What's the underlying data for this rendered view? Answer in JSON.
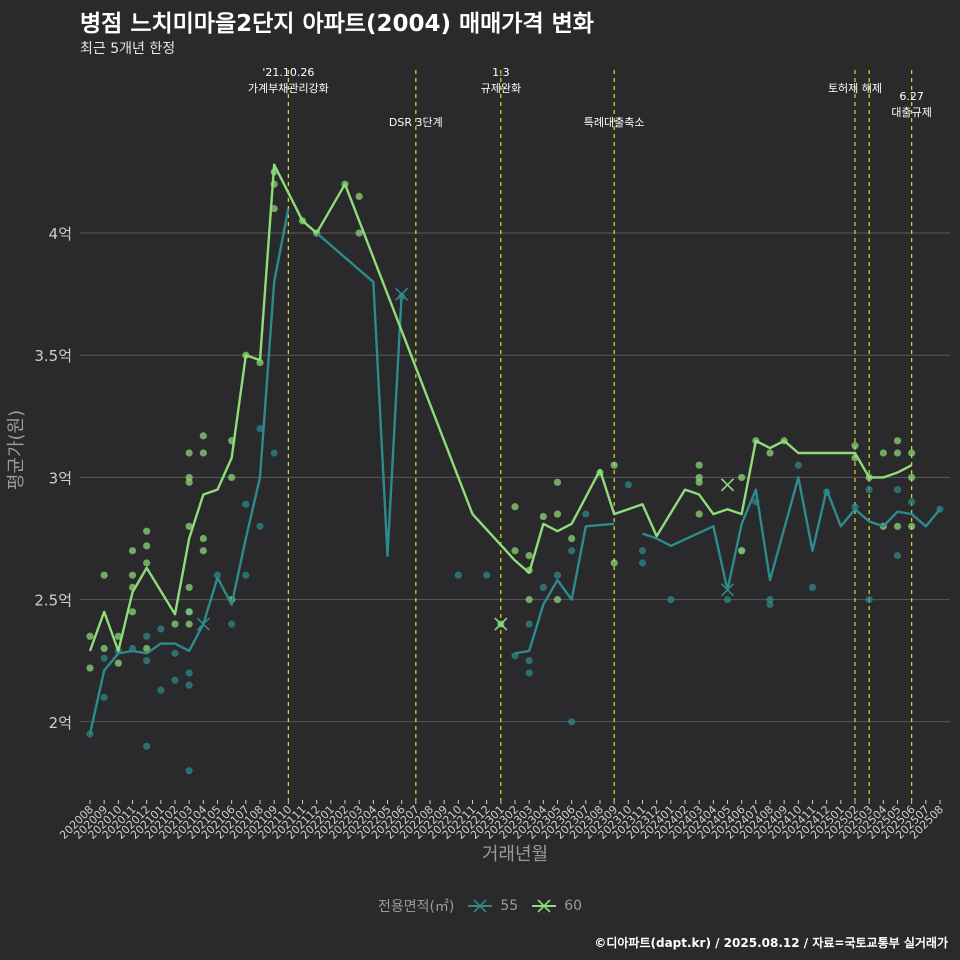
{
  "title": "병점 느치미마을2단지 아파트(2004) 매매가격 변화",
  "subtitle": "최근 5개년 한정",
  "credit": "©디아파트(dapt.kr) / 2025.08.12 / 자료=국토교통부 실거래가",
  "legend": {
    "title": "전용면적(㎡)",
    "items": [
      "55",
      "60"
    ]
  },
  "colors": {
    "s55": "#2e8b8b",
    "s60": "#8fdc7a",
    "vline": "#d9e021",
    "grid": "#5a5a5a",
    "axis": "#cfcfcf",
    "label": "#9a9a9a"
  },
  "chart_data": {
    "type": "line",
    "xlabel": "거래년월",
    "ylabel": "평균가(원)",
    "ylim": [
      1.68,
      4.7
    ],
    "yticks": [
      2,
      2.5,
      3,
      3.5,
      4
    ],
    "ytick_labels": [
      "2억",
      "2.5억",
      "3억",
      "3.5억",
      "4억"
    ],
    "x_start": "202008",
    "x_end": "202508",
    "x": [
      "202008",
      "202009",
      "202010",
      "202011",
      "202012",
      "202101",
      "202102",
      "202103",
      "202104",
      "202105",
      "202106",
      "202107",
      "202108",
      "202109",
      "202110",
      "202111",
      "202112",
      "202201",
      "202202",
      "202203",
      "202204",
      "202205",
      "202206",
      "202207",
      "202208",
      "202209",
      "202210",
      "202211",
      "202212",
      "202301",
      "202302",
      "202303",
      "202304",
      "202305",
      "202306",
      "202307",
      "202308",
      "202309",
      "202310",
      "202311",
      "202312",
      "202401",
      "202402",
      "202403",
      "202404",
      "202405",
      "202406",
      "202407",
      "202408",
      "202409",
      "202410",
      "202411",
      "202412",
      "202501",
      "202502",
      "202503",
      "202504",
      "202505",
      "202506",
      "202507",
      "202508"
    ],
    "events": [
      {
        "x": "202110",
        "label": "'21.10.26\n가계부채관리강화",
        "row": 0
      },
      {
        "x": "202207",
        "label": "DSR 3단계",
        "row": 1
      },
      {
        "x": "202301",
        "label": "1.3\n규제완화",
        "row": 0
      },
      {
        "x": "202309",
        "label": "특례대출축소",
        "row": 1
      },
      {
        "x": "202502",
        "label": "토허제 해제",
        "row": 0
      },
      {
        "x": "202503",
        "label": "",
        "row": 0
      },
      {
        "x": "202506",
        "label": "6.27\n대출규제",
        "row": 2
      }
    ],
    "series": [
      {
        "name": "55",
        "line": [
          [
            "202008",
            1.95
          ],
          [
            "202009",
            2.21
          ],
          [
            "202010",
            2.28
          ],
          [
            "202011",
            2.29
          ],
          [
            "202012",
            2.28
          ],
          [
            "202101",
            2.32
          ],
          [
            "202102",
            2.32
          ],
          [
            "202103",
            2.29
          ],
          [
            "202104",
            2.4
          ],
          [
            "202105",
            2.59
          ],
          [
            "202106",
            2.48
          ],
          [
            "202107",
            2.75
          ],
          [
            "202108",
            3.0
          ],
          [
            "202109",
            3.8
          ],
          [
            "202110",
            4.1
          ],
          null,
          [
            "202112",
            4.0
          ],
          [
            "202204",
            3.8
          ],
          [
            "202205",
            2.68
          ],
          [
            "202206",
            3.75
          ],
          null,
          [
            "202302",
            2.28
          ],
          [
            "202303",
            2.29
          ],
          [
            "202304",
            2.48
          ],
          [
            "202305",
            2.58
          ],
          [
            "202306",
            2.5
          ],
          [
            "202307",
            2.8
          ],
          [
            "202309",
            2.81
          ],
          null,
          [
            "202311",
            2.77
          ],
          [
            "202312",
            2.75
          ],
          [
            "202401",
            2.72
          ],
          [
            "202404",
            2.8
          ],
          [
            "202405",
            2.54
          ],
          [
            "202406",
            2.81
          ],
          [
            "202407",
            2.95
          ],
          [
            "202408",
            2.58
          ],
          [
            "202410",
            3.0
          ],
          [
            "202411",
            2.7
          ],
          [
            "202412",
            2.95
          ],
          [
            "202501",
            2.8
          ],
          [
            "202502",
            2.87
          ],
          [
            "202503",
            2.82
          ],
          [
            "202504",
            2.8
          ],
          [
            "202505",
            2.86
          ],
          [
            "202506",
            2.85
          ],
          [
            "202507",
            2.8
          ],
          [
            "202508",
            2.87
          ]
        ],
        "points": [
          [
            "202008",
            1.95
          ],
          [
            "202009",
            2.1
          ],
          [
            "202009",
            2.26
          ],
          [
            "202010",
            2.29
          ],
          [
            "202011",
            2.3
          ],
          [
            "202012",
            1.9
          ],
          [
            "202012",
            2.25
          ],
          [
            "202012",
            2.35
          ],
          [
            "202101",
            2.13
          ],
          [
            "202101",
            2.38
          ],
          [
            "202102",
            2.17
          ],
          [
            "202102",
            2.28
          ],
          [
            "202103",
            1.8
          ],
          [
            "202103",
            2.15
          ],
          [
            "202103",
            2.2
          ],
          [
            "202103",
            2.45
          ],
          [
            "202105",
            2.6
          ],
          [
            "202106",
            2.4
          ],
          [
            "202107",
            2.6
          ],
          [
            "202107",
            2.89
          ],
          [
            "202108",
            2.8
          ],
          [
            "202108",
            3.2
          ],
          [
            "202109",
            3.1
          ],
          [
            "202206",
            3.74
          ],
          [
            "202210",
            2.6
          ],
          [
            "202212",
            2.6
          ],
          [
            "202302",
            2.27
          ],
          [
            "202303",
            2.2
          ],
          [
            "202303",
            2.25
          ],
          [
            "202303",
            2.4
          ],
          [
            "202304",
            2.55
          ],
          [
            "202305",
            2.6
          ],
          [
            "202306",
            2.0
          ],
          [
            "202306",
            2.7
          ],
          [
            "202307",
            2.85
          ],
          [
            "202310",
            2.97
          ],
          [
            "202311",
            2.7
          ],
          [
            "202311",
            2.65
          ],
          [
            "202401",
            2.5
          ],
          [
            "202405",
            2.5
          ],
          [
            "202406",
            2.7
          ],
          [
            "202407",
            2.9
          ],
          [
            "202408",
            2.48
          ],
          [
            "202408",
            2.5
          ],
          [
            "202410",
            3.05
          ],
          [
            "202411",
            2.55
          ],
          [
            "202412",
            2.94
          ],
          [
            "202502",
            2.88
          ],
          [
            "202503",
            2.95
          ],
          [
            "202503",
            2.5
          ],
          [
            "202505",
            2.68
          ],
          [
            "202505",
            2.95
          ],
          [
            "202506",
            2.9
          ],
          [
            "202508",
            2.87
          ]
        ],
        "x_markers": [
          [
            "202104",
            2.4
          ],
          [
            "202206",
            3.75
          ],
          [
            "202405",
            2.54
          ]
        ]
      },
      {
        "name": "60",
        "line": [
          [
            "202008",
            2.29
          ],
          [
            "202009",
            2.45
          ],
          [
            "202010",
            2.29
          ],
          [
            "202011",
            2.53
          ],
          [
            "202012",
            2.63
          ],
          [
            "202102",
            2.44
          ],
          [
            "202103",
            2.75
          ],
          [
            "202104",
            2.93
          ],
          [
            "202105",
            2.95
          ],
          [
            "202106",
            3.08
          ],
          [
            "202107",
            3.5
          ],
          [
            "202108",
            3.48
          ],
          [
            "202109",
            4.28
          ],
          [
            "202111",
            4.05
          ],
          [
            "202112",
            4.0
          ],
          [
            "202202",
            4.2
          ],
          [
            "202203",
            4.05
          ],
          [
            "202211",
            2.85
          ],
          [
            "202302",
            2.66
          ],
          [
            "202303",
            2.61
          ],
          [
            "202304",
            2.81
          ],
          [
            "202305",
            2.78
          ],
          [
            "202306",
            2.81
          ],
          [
            "202308",
            3.03
          ],
          [
            "202309",
            2.85
          ],
          [
            "202311",
            2.89
          ],
          [
            "202312",
            2.76
          ],
          [
            "202402",
            2.95
          ],
          [
            "202403",
            2.93
          ],
          [
            "202404",
            2.85
          ],
          [
            "202405",
            2.87
          ],
          [
            "202406",
            2.85
          ],
          [
            "202407",
            3.15
          ],
          [
            "202408",
            3.12
          ],
          [
            "202409",
            3.15
          ],
          [
            "202410",
            3.1
          ],
          [
            "202502",
            3.1
          ],
          [
            "202503",
            3.0
          ],
          [
            "202504",
            3.0
          ],
          [
            "202505",
            3.02
          ],
          [
            "202506",
            3.05
          ]
        ],
        "points": [
          [
            "202008",
            2.35
          ],
          [
            "202008",
            2.22
          ],
          [
            "202009",
            2.6
          ],
          [
            "202009",
            2.3
          ],
          [
            "202010",
            2.35
          ],
          [
            "202010",
            2.24
          ],
          [
            "202011",
            2.6
          ],
          [
            "202011",
            2.7
          ],
          [
            "202011",
            2.55
          ],
          [
            "202011",
            2.45
          ],
          [
            "202012",
            2.78
          ],
          [
            "202012",
            2.72
          ],
          [
            "202012",
            2.65
          ],
          [
            "202012",
            2.3
          ],
          [
            "202102",
            2.4
          ],
          [
            "202103",
            3.1
          ],
          [
            "202103",
            3.0
          ],
          [
            "202103",
            2.98
          ],
          [
            "202103",
            2.8
          ],
          [
            "202103",
            2.55
          ],
          [
            "202103",
            2.45
          ],
          [
            "202103",
            2.4
          ],
          [
            "202104",
            3.17
          ],
          [
            "202104",
            3.1
          ],
          [
            "202104",
            2.75
          ],
          [
            "202104",
            2.7
          ],
          [
            "202106",
            3.15
          ],
          [
            "202106",
            3.0
          ],
          [
            "202106",
            2.5
          ],
          [
            "202107",
            3.5
          ],
          [
            "202108",
            3.47
          ],
          [
            "202109",
            4.2
          ],
          [
            "202109",
            4.1
          ],
          [
            "202109",
            4.25
          ],
          [
            "202111",
            4.05
          ],
          [
            "202112",
            4.0
          ],
          [
            "202202",
            4.2
          ],
          [
            "202203",
            4.15
          ],
          [
            "202203",
            4.0
          ],
          [
            "202301",
            2.4
          ],
          [
            "202302",
            2.88
          ],
          [
            "202302",
            2.7
          ],
          [
            "202303",
            2.68
          ],
          [
            "202303",
            2.62
          ],
          [
            "202303",
            2.5
          ],
          [
            "202304",
            2.84
          ],
          [
            "202305",
            2.98
          ],
          [
            "202305",
            2.85
          ],
          [
            "202305",
            2.5
          ],
          [
            "202306",
            2.75
          ],
          [
            "202308",
            3.02
          ],
          [
            "202309",
            3.05
          ],
          [
            "202309",
            2.65
          ],
          [
            "202403",
            3.05
          ],
          [
            "202403",
            3.0
          ],
          [
            "202403",
            2.98
          ],
          [
            "202403",
            2.85
          ],
          [
            "202406",
            3.0
          ],
          [
            "202406",
            2.7
          ],
          [
            "202407",
            3.15
          ],
          [
            "202408",
            3.1
          ],
          [
            "202409",
            3.15
          ],
          [
            "202502",
            3.13
          ],
          [
            "202502",
            3.08
          ],
          [
            "202503",
            3.0
          ],
          [
            "202504",
            3.1
          ],
          [
            "202504",
            2.8
          ],
          [
            "202505",
            3.15
          ],
          [
            "202505",
            3.1
          ],
          [
            "202505",
            2.8
          ],
          [
            "202506",
            3.1
          ],
          [
            "202506",
            3.0
          ],
          [
            "202506",
            2.8
          ]
        ],
        "x_markers": [
          [
            "202301",
            2.4
          ],
          [
            "202405",
            2.97
          ]
        ]
      }
    ]
  }
}
